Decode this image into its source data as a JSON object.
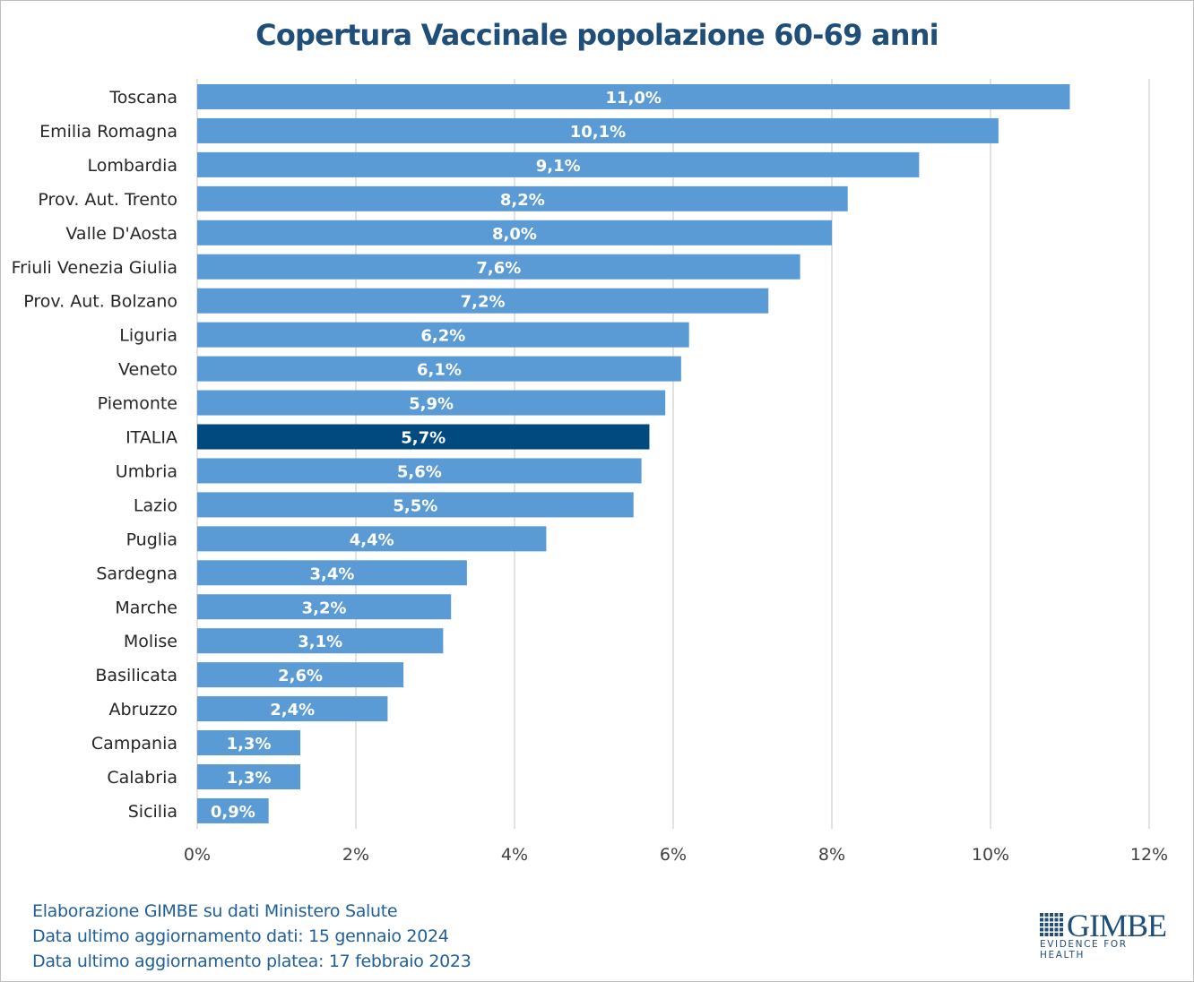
{
  "chart_data": {
    "type": "bar",
    "orientation": "horizontal",
    "title": "Copertura Vaccinale popolazione 60-69 anni",
    "categories": [
      "Toscana",
      "Emilia Romagna",
      "Lombardia",
      "Prov. Aut. Trento",
      "Valle D'Aosta",
      "Friuli Venezia Giulia",
      "Prov. Aut. Bolzano",
      "Liguria",
      "Veneto",
      "Piemonte",
      "ITALIA",
      "Umbria",
      "Lazio",
      "Puglia",
      "Sardegna",
      "Marche",
      "Molise",
      "Basilicata",
      "Abruzzo",
      "Campania",
      "Calabria",
      "Sicilia"
    ],
    "values": [
      11.0,
      10.1,
      9.1,
      8.2,
      8.0,
      7.6,
      7.2,
      6.2,
      6.1,
      5.9,
      5.7,
      5.6,
      5.5,
      4.4,
      3.4,
      3.2,
      3.1,
      2.6,
      2.4,
      1.3,
      1.3,
      0.9
    ],
    "labels": [
      "11,0%",
      "10,1%",
      "9,1%",
      "8,2%",
      "8,0%",
      "7,6%",
      "7,2%",
      "6,2%",
      "6,1%",
      "5,9%",
      "5,7%",
      "5,6%",
      "5,5%",
      "4,4%",
      "3,4%",
      "3,2%",
      "3,1%",
      "2,6%",
      "2,4%",
      "1,3%",
      "1,3%",
      "0,9%"
    ],
    "highlight": "ITALIA",
    "xlim": [
      0,
      12
    ],
    "xticks": [
      0,
      2,
      4,
      6,
      8,
      10,
      12
    ],
    "xtick_labels": [
      "0%",
      "2%",
      "4%",
      "6%",
      "8%",
      "10%",
      "12%"
    ],
    "grid": true,
    "xlabel": "",
    "ylabel": "",
    "colors": {
      "bar": "#5b9bd5",
      "highlight": "#004a80",
      "title": "#1f4e79"
    }
  },
  "footer": {
    "lines": [
      "Elaborazione GIMBE su dati Ministero Salute",
      "Data ultimo aggiornamento dati: 15 gennaio 2024",
      "Data ultimo aggiornamento platea: 17 febbraio 2023"
    ]
  },
  "logo": {
    "name": "GIMBE",
    "tagline": "EVIDENCE FOR HEALTH"
  }
}
